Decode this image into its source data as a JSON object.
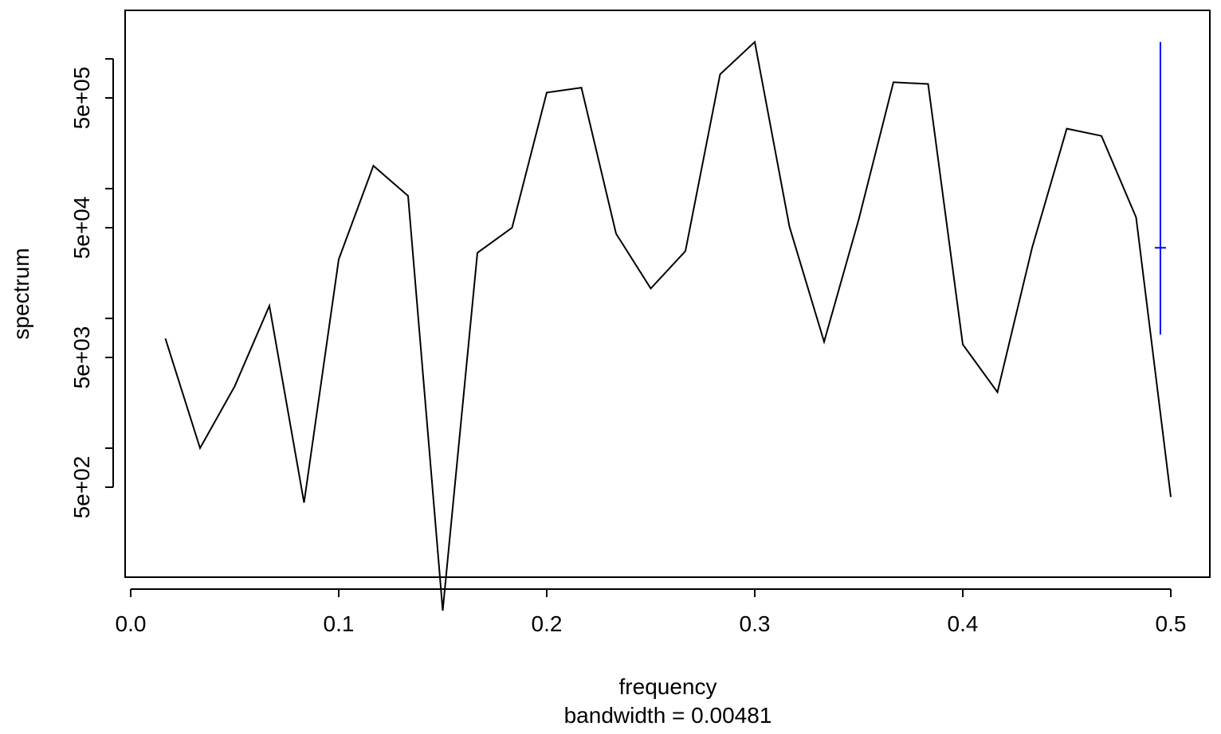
{
  "chart_data": {
    "type": "line",
    "xlabel": "frequency",
    "ylabel": "spectrum",
    "sub": "bandwidth = 0.00481",
    "y_scale": "log",
    "xlim": [
      0.0,
      0.5
    ],
    "ylim": [
      50,
      1500000
    ],
    "x_ticks": [
      {
        "value": 0.0,
        "label": "0.0"
      },
      {
        "value": 0.1,
        "label": "0.1"
      },
      {
        "value": 0.2,
        "label": "0.2"
      },
      {
        "value": 0.3,
        "label": "0.3"
      },
      {
        "value": 0.4,
        "label": "0.4"
      },
      {
        "value": 0.5,
        "label": "0.5"
      }
    ],
    "y_labeled_ticks": [
      {
        "value": 500,
        "label": "5e+02"
      },
      {
        "value": 5000,
        "label": "5e+03"
      },
      {
        "value": 50000,
        "label": "5e+04"
      },
      {
        "value": 500000,
        "label": "5e+05"
      }
    ],
    "y_minor_ticks": [
      1000,
      10000,
      100000,
      1000000
    ],
    "series": [
      {
        "color": "#000000",
        "x": [
          0.01667,
          0.03333,
          0.05,
          0.06667,
          0.08333,
          0.1,
          0.11667,
          0.13333,
          0.15,
          0.16667,
          0.18333,
          0.2,
          0.21667,
          0.23333,
          0.25,
          0.26667,
          0.28333,
          0.3,
          0.31667,
          0.33333,
          0.35,
          0.36667,
          0.38333,
          0.4,
          0.41667,
          0.43333,
          0.45,
          0.46667,
          0.48333,
          0.5
        ],
        "y": [
          7000,
          1000,
          3000,
          12500,
          380,
          28500,
          150000,
          88000,
          56,
          32000,
          50000,
          550000,
          600000,
          45000,
          17000,
          33000,
          760000,
          1350000,
          51000,
          6600,
          58000,
          660000,
          640000,
          6300,
          2700,
          35000,
          290000,
          255000,
          60000,
          420
        ]
      }
    ],
    "ci_bar": {
      "color": "#0000ff",
      "x": 0.495,
      "y_center": 35000,
      "y_low": 7500,
      "y_high": 1350000
    }
  }
}
